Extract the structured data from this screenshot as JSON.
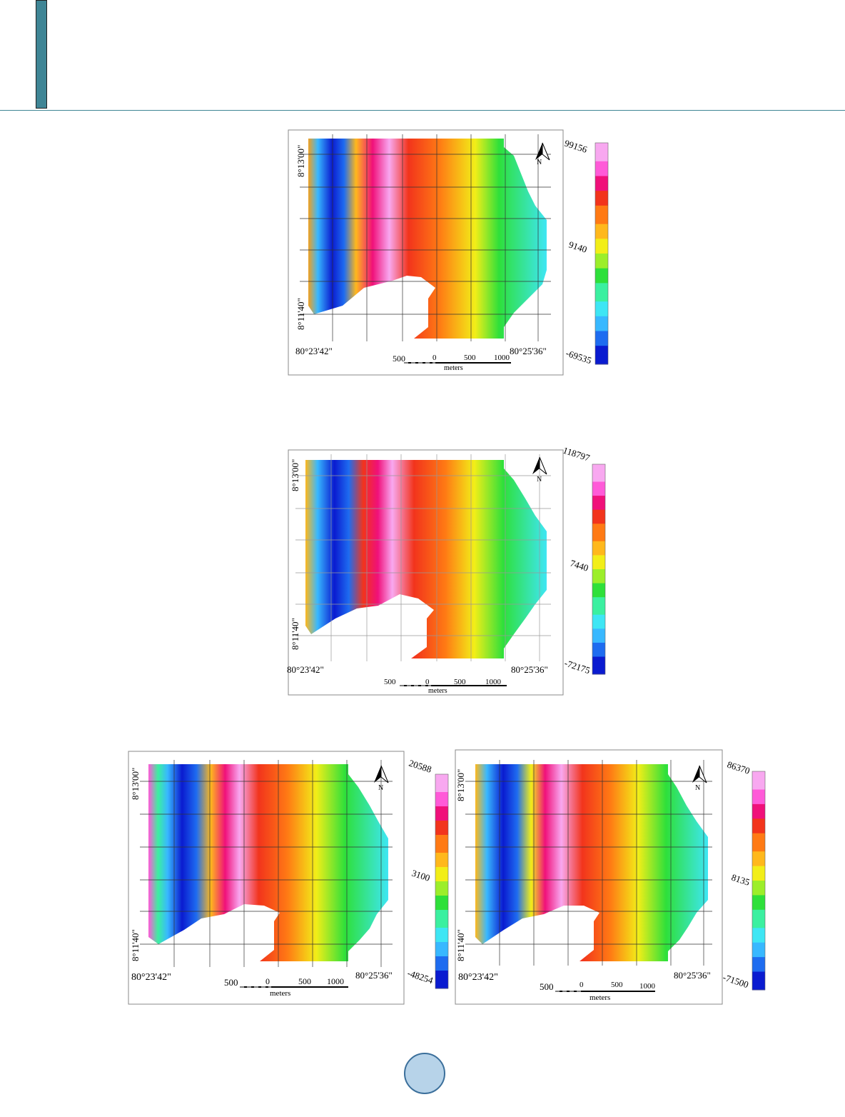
{
  "maps": [
    {
      "lat_top": "8°13'00\"",
      "lat_bottom": "8°11'40\"",
      "lon_left": "80°23'42\"",
      "lon_right": "80°25'36\"",
      "scale_labels": [
        "500",
        "0",
        "500",
        "1000"
      ],
      "scale_unit": "meters",
      "north_label": "N",
      "legend_max": "99156",
      "legend_mid": "9140",
      "legend_min": "-69535"
    },
    {
      "lat_top": "8°13'00\"",
      "lat_bottom": "8°11'40\"",
      "lon_left": "80°23'42\"",
      "lon_right": "80°25'36\"",
      "scale_labels": [
        "500",
        "0",
        "500",
        "1000"
      ],
      "scale_unit": "meters",
      "north_label": "N",
      "legend_max": "118797",
      "legend_mid": "7440",
      "legend_min": "-72175"
    },
    {
      "lat_top": "8°13'00\"",
      "lat_bottom": "8°11'40\"",
      "lon_left": "80°23'42\"",
      "lon_right": "80°25'36\"",
      "scale_labels": [
        "500",
        "0",
        "500",
        "1000"
      ],
      "scale_unit": "meters",
      "north_label": "N",
      "legend_max": "20588",
      "legend_mid": "3100",
      "legend_min": "-48254"
    },
    {
      "lat_top": "8°13'00\"",
      "lat_bottom": "8°11'40\"",
      "lon_left": "80°23'42\"",
      "lon_right": "80°25'36\"",
      "scale_labels": [
        "500",
        "0",
        "500",
        "1000"
      ],
      "scale_unit": "meters",
      "north_label": "N",
      "legend_max": "86370",
      "legend_mid": "8135",
      "legend_min": "-71500"
    }
  ],
  "colors": {
    "header_accent": "#3f8595",
    "page_dot_fill": "#b7d3e9",
    "page_dot_border": "#3b6f9b",
    "colormap": [
      "#0a1bd0",
      "#1e6cf0",
      "#38b8ff",
      "#3ee6f4",
      "#3bf0a0",
      "#2ee03a",
      "#9cee2a",
      "#f2ee18",
      "#ffb81c",
      "#ff7a14",
      "#f2341c",
      "#f0107a",
      "#ff5ad8",
      "#f8a8f0"
    ]
  }
}
